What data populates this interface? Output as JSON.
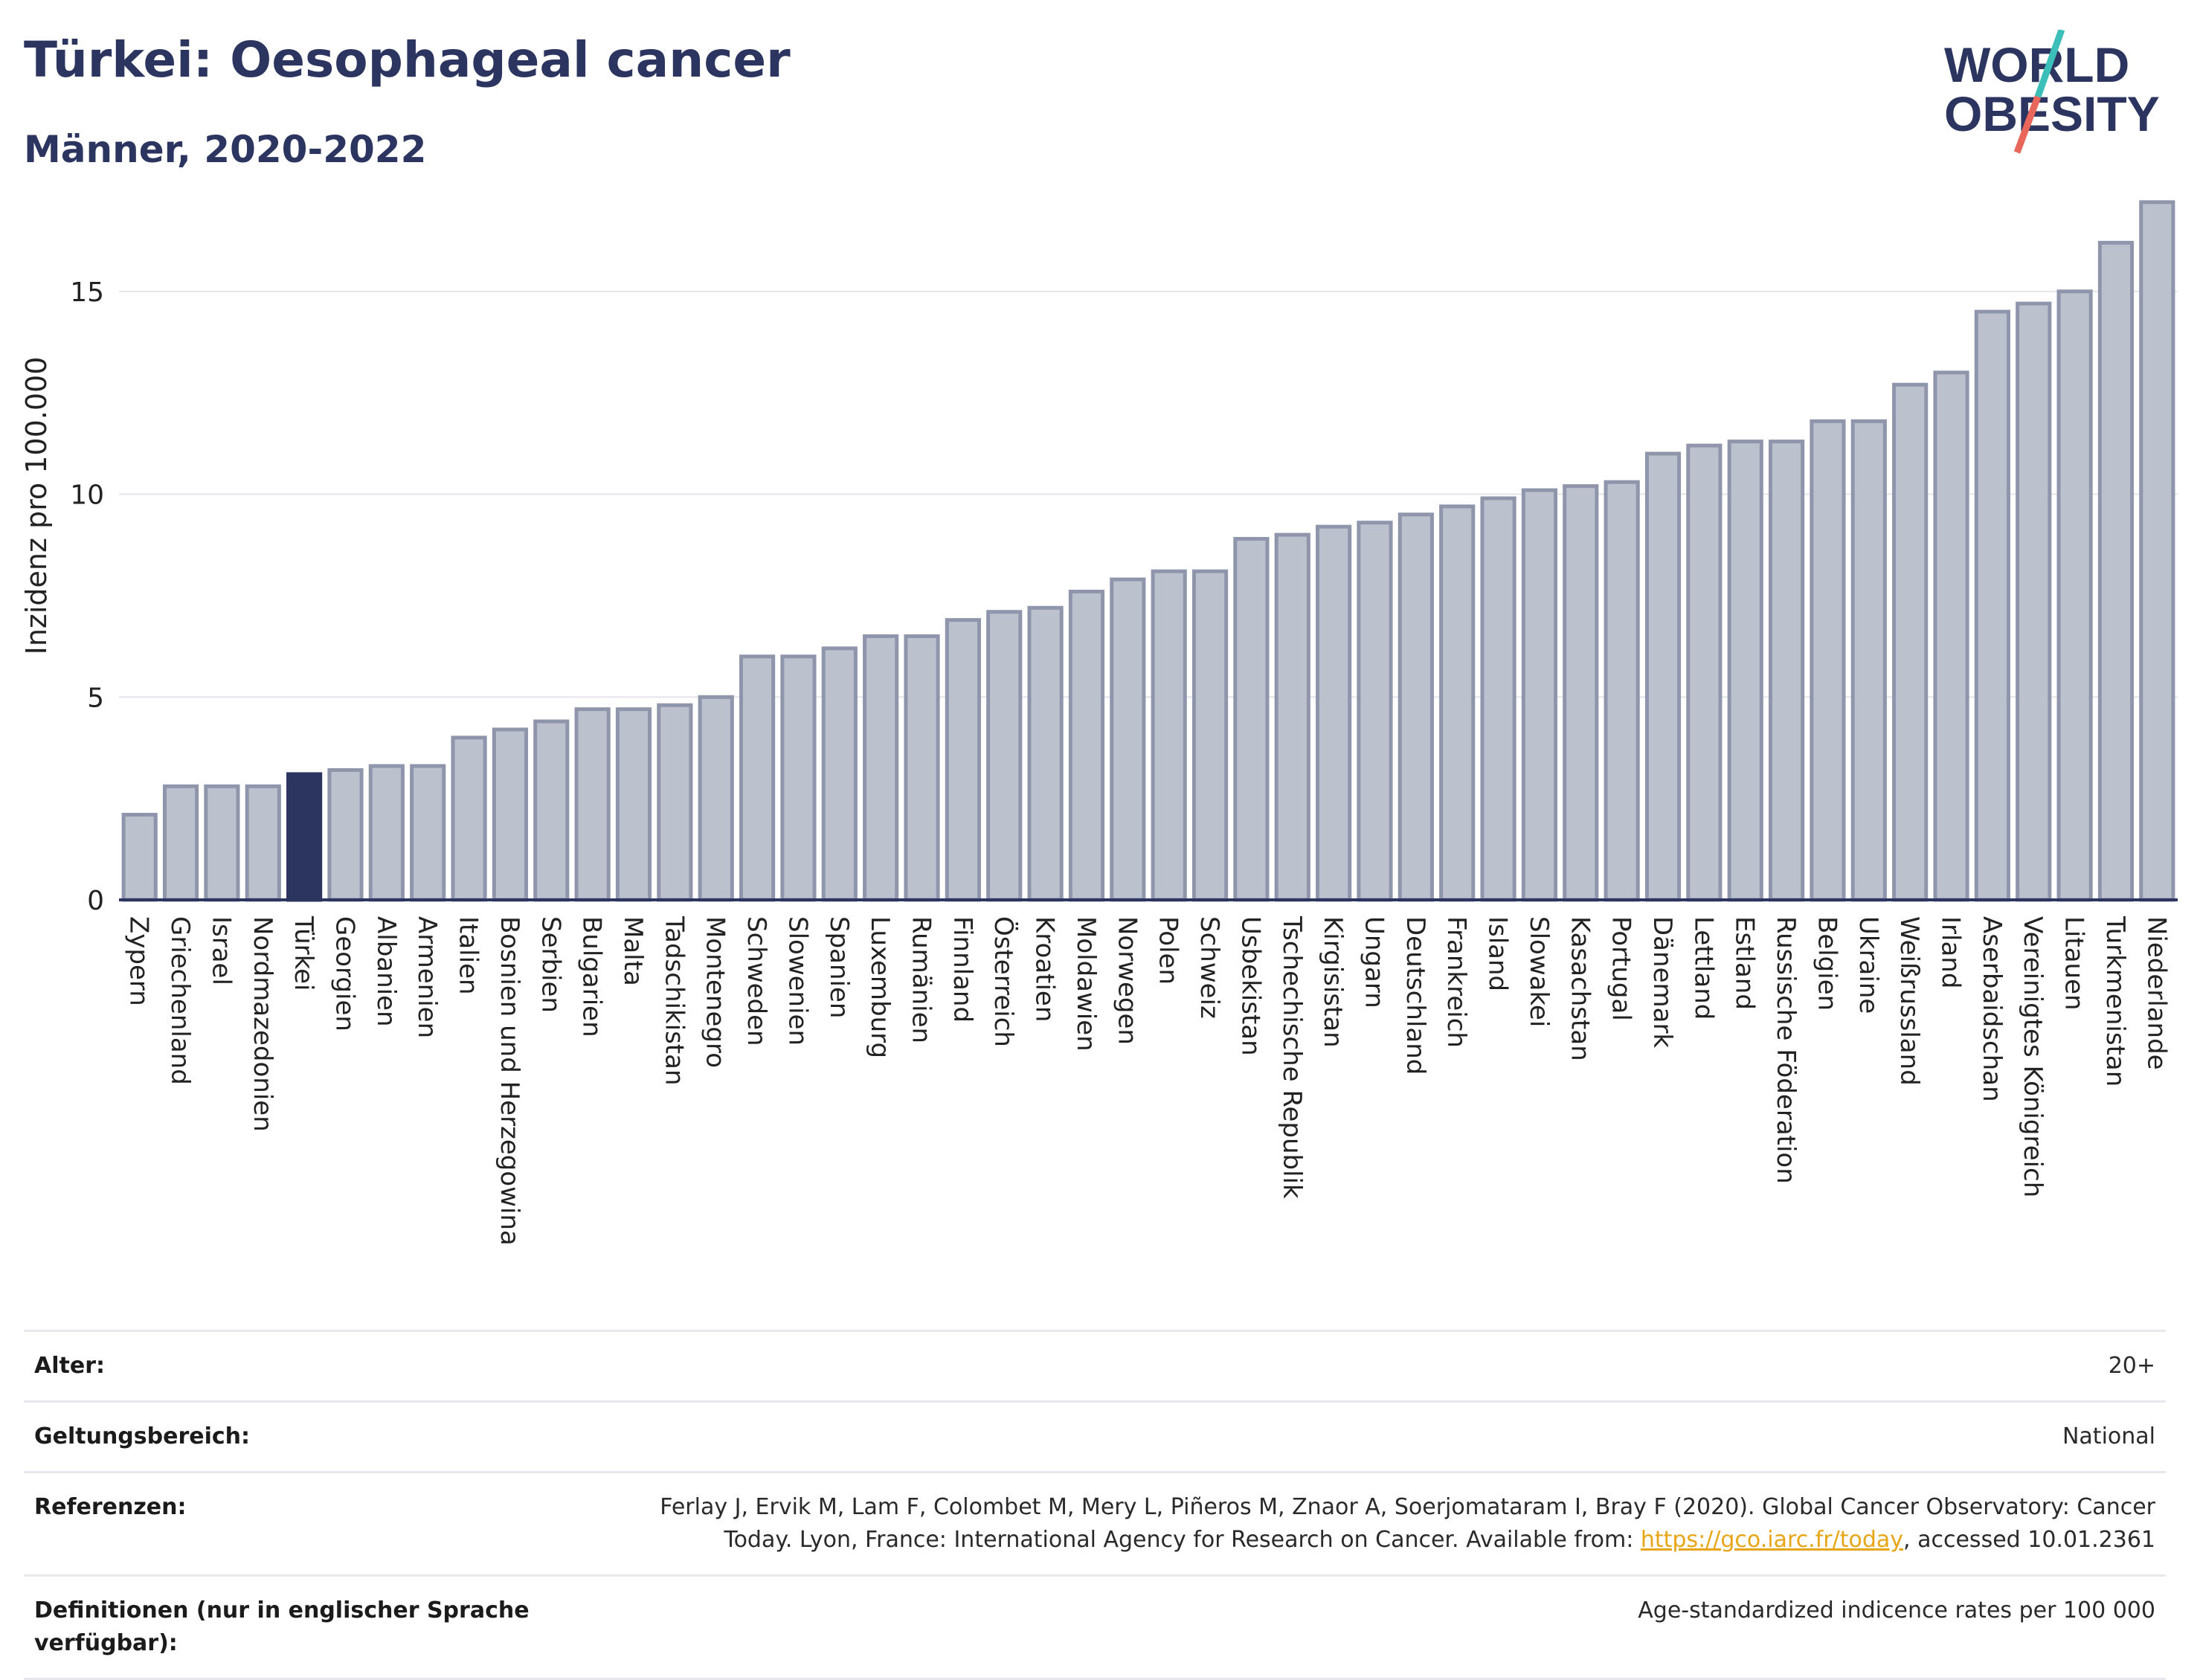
{
  "header": {
    "title": "Türkei: Oesophageal cancer",
    "subtitle": "Männer, 2020-2022"
  },
  "logo": {
    "line1": "WORLD",
    "line2": "OBESITY"
  },
  "colors": {
    "highlight": "#2b3560",
    "bar_fill": "#bcc1ce",
    "bar_stroke": "#8f95ab",
    "grid": "#e3e5ea",
    "logo_text": "#2b3560",
    "logo_red": "#e8665a",
    "logo_teal": "#3bbfb8"
  },
  "chart_data": {
    "type": "bar",
    "title": "Türkei: Oesophageal cancer",
    "subtitle": "Männer, 2020-2022",
    "xlabel": "",
    "ylabel": "Inzidenz pro 100.000",
    "ylim": [
      0,
      17.6
    ],
    "yticks": [
      0,
      5,
      10,
      15
    ],
    "grid": true,
    "highlight": "Türkei",
    "categories": [
      "Zypern",
      "Griechenland",
      "Israel",
      "Nordmazedonien",
      "Türkei",
      "Georgien",
      "Albanien",
      "Armenien",
      "Italien",
      "Bosnien und Herzegowina",
      "Serbien",
      "Bulgarien",
      "Malta",
      "Tadschikistan",
      "Montenegro",
      "Schweden",
      "Slowenien",
      "Spanien",
      "Luxemburg",
      "Rumänien",
      "Finnland",
      "Österreich",
      "Kroatien",
      "Moldawien",
      "Norwegen",
      "Polen",
      "Schweiz",
      "Usbekistan",
      "Tschechische Republik",
      "Kirgisistan",
      "Ungarn",
      "Deutschland",
      "Frankreich",
      "Island",
      "Slowakei",
      "Kasachstan",
      "Portugal",
      "Dänemark",
      "Lettland",
      "Estland",
      "Russische Föderation",
      "Belgien",
      "Ukraine",
      "Weißrussland",
      "Irland",
      "Aserbaidschan",
      "Vereinigtes Königreich",
      "Litauen",
      "Turkmenistan",
      "Niederlande"
    ],
    "values": [
      2.1,
      2.8,
      2.8,
      2.8,
      3.1,
      3.2,
      3.3,
      3.3,
      4.0,
      4.2,
      4.4,
      4.7,
      4.7,
      4.8,
      5.0,
      6.0,
      6.0,
      6.2,
      6.5,
      6.5,
      6.9,
      7.1,
      7.2,
      7.6,
      7.9,
      8.1,
      8.1,
      8.9,
      9.0,
      9.2,
      9.3,
      9.5,
      9.7,
      9.9,
      10.1,
      10.2,
      10.3,
      11.0,
      11.2,
      11.3,
      11.3,
      11.8,
      11.8,
      12.7,
      13.0,
      14.5,
      14.7,
      15.0,
      16.2,
      17.2
    ]
  },
  "info": {
    "age_label": "Alter:",
    "age_value": "20+",
    "scope_label": "Geltungsbereich:",
    "scope_value": "National",
    "ref_label": "Referenzen:",
    "ref_text_1": "Ferlay J, Ervik M, Lam F, Colombet M, Mery L, Piñeros M, Znaor A, Soerjomataram I, Bray F (2020). Global Cancer Observatory: Cancer Today. Lyon, France: International Agency for Research on Cancer. Available from: ",
    "ref_link": "https://gco.iarc.fr/today",
    "ref_text_2": ", accessed 10.01.2361",
    "def_label": "Definitionen (nur in englischer Sprache verfügbar):",
    "def_value": "Age-standardized indicence rates per 100 000"
  }
}
